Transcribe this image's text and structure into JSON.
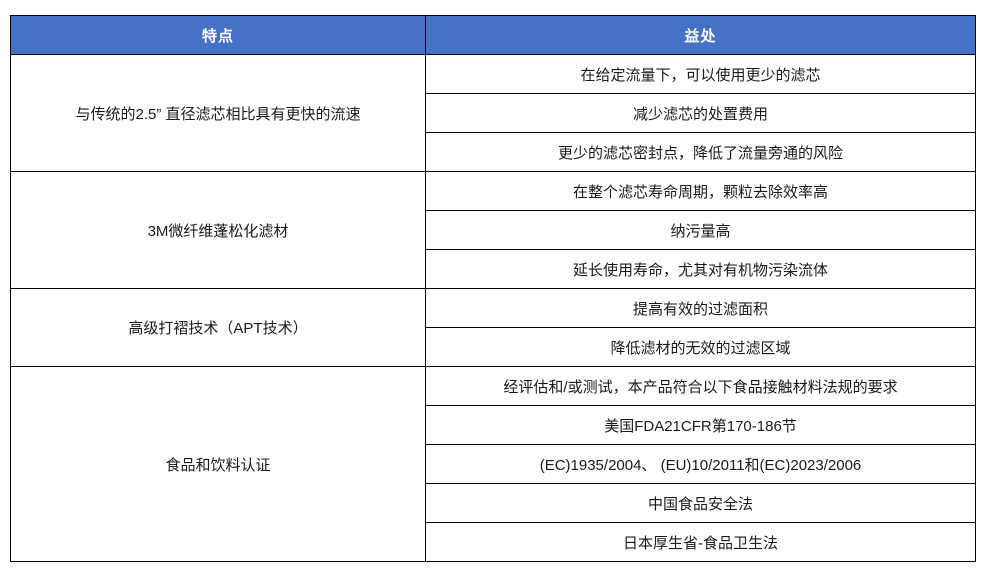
{
  "table": {
    "headers": {
      "features": "特点",
      "benefits": "益处"
    },
    "groups": [
      {
        "feature": "与传统的2.5” 直径滤芯相比具有更快的流速",
        "benefits": [
          "在给定流量下，可以使用更少的滤芯",
          "减少滤芯的处置费用",
          "更少的滤芯密封点，降低了流量旁通的风险"
        ]
      },
      {
        "feature": "3M微纤维蓬松化滤材",
        "benefits": [
          "在整个滤芯寿命周期，颗粒去除效率高",
          "纳污量高",
          "延长使用寿命，尤其对有机物污染流体"
        ]
      },
      {
        "feature": "高级打褶技术（APT技术）",
        "benefits": [
          "提高有效的过滤面积",
          "降低滤材的无效的过滤区域"
        ]
      },
      {
        "feature": "食品和饮料认证",
        "benefits": [
          "经评估和/或测试，本产品符合以下食品接触材料法规的要求",
          "美国FDA21CFR第170-186节",
          "(EC)1935/2004、 (EU)10/2011和(EC)2023/2006",
          "中国食品安全法",
          "日本厚生省-食品卫生法"
        ]
      }
    ],
    "colors": {
      "header_bg": "#4472C4",
      "header_text": "#FFFFFF",
      "border": "#000000",
      "body_text": "#1A1A1A"
    }
  }
}
